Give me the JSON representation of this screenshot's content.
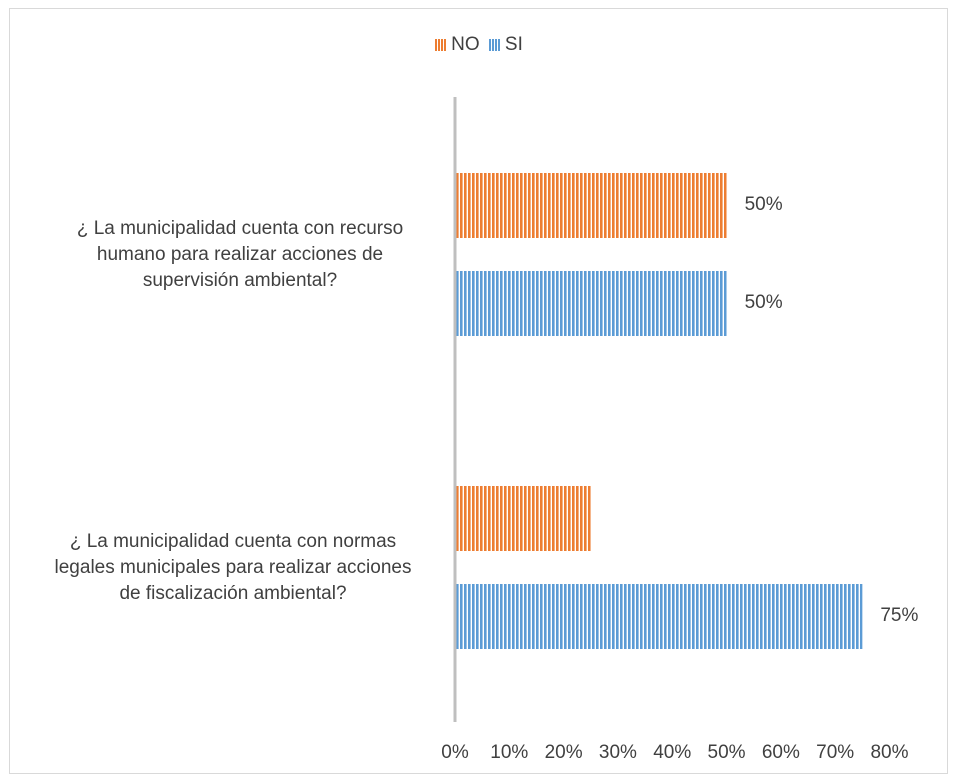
{
  "chart_data": {
    "type": "bar",
    "orientation": "horizontal",
    "categories": [
      "¿ La municipalidad cuenta con recurso humano para realizar acciones de supervisión ambiental?",
      "¿ La municipalidad cuenta con normas legales municipales para realizar acciones de fiscalización ambiental?"
    ],
    "category_lines": [
      [
        "¿ La municipalidad cuenta con recurso",
        "humano para realizar acciones de",
        "supervisión ambiental?"
      ],
      [
        "¿ La municipalidad cuenta con normas",
        "legales municipales para realizar acciones",
        "de fiscalización ambiental?"
      ]
    ],
    "series": [
      {
        "name": "NO",
        "color": "#ED7D31",
        "values": [
          0.5,
          0.25
        ],
        "data_labels": [
          "50%",
          ""
        ]
      },
      {
        "name": "SI",
        "color": "#5B9BD5",
        "values": [
          0.5,
          0.75
        ],
        "data_labels": [
          "50%",
          "75%"
        ]
      }
    ],
    "xlim": [
      0,
      0.8
    ],
    "x_ticks": [
      "0%",
      "10%",
      "20%",
      "30%",
      "40%",
      "50%",
      "60%",
      "70%",
      "80%"
    ],
    "legend_position": "top",
    "grid": false,
    "bar_pattern": "vertical-stripes"
  }
}
